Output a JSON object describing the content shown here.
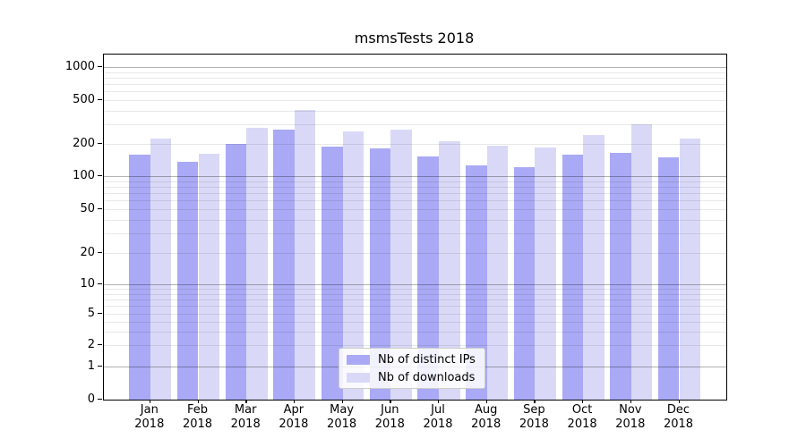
{
  "figure": {
    "title": "msmsTests 2018"
  },
  "legend": {
    "items": [
      {
        "label": "Nb of distinct IPs"
      },
      {
        "label": "Nb of downloads"
      }
    ]
  },
  "chart_data": {
    "type": "bar",
    "title": "msmsTests 2018",
    "categories": [
      "Jan 2018",
      "Feb 2018",
      "Mar 2018",
      "Apr 2018",
      "May 2018",
      "Jun 2018",
      "Jul 2018",
      "Aug 2018",
      "Sep 2018",
      "Oct 2018",
      "Nov 2018",
      "Dec 2018"
    ],
    "series": [
      {
        "name": "Nb of distinct IPs",
        "color": "#a9a9f5",
        "values": [
          160,
          135,
          200,
          268,
          188,
          181,
          152,
          126,
          121,
          160,
          166,
          150
        ]
      },
      {
        "name": "Nb of downloads",
        "color": "#d9d9f7",
        "values": [
          225,
          161,
          280,
          405,
          260,
          272,
          210,
          191,
          186,
          242,
          300,
          225
        ]
      }
    ],
    "xlabel": "",
    "ylabel": "",
    "yscale": "symlog",
    "yticks": [
      0,
      1,
      2,
      5,
      10,
      20,
      50,
      100,
      200,
      500,
      1000
    ],
    "ylim": [
      0,
      1300
    ],
    "grid": true,
    "grid_over_bars": true,
    "legend_position": "lower center",
    "colors": {
      "major_gridline": "#b3b3b3",
      "minor_gridline": "#e9e9e9",
      "axis": "#000000",
      "background": "#ffffff"
    }
  }
}
